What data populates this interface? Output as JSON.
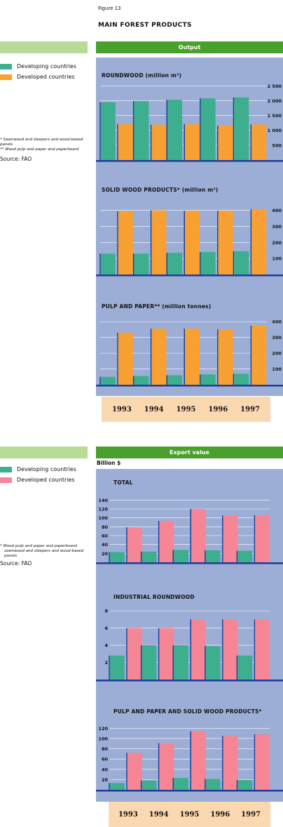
{
  "figure_label": "Figure 13",
  "main_title": "MAIN FOREST PRODUCTS",
  "colors": {
    "developing": "#3dae8e",
    "developed_output": "#f8a132",
    "developed_export": "#f68596",
    "panel_bg": "#9caed5",
    "axis_blue": "#1f3c99",
    "header_green": "#4aa02c",
    "light_green": "#b7dc95",
    "years_bg": "#fbd9b0"
  },
  "output": {
    "header": "Output",
    "legend": [
      "Developing countries",
      "Developed countries"
    ],
    "notes": [
      "*   Sawnwood and sleepers and wood-based panels",
      "**  Wood pulp and paper and paperboard"
    ],
    "source": "Source: FAO"
  },
  "export": {
    "header": "Export value",
    "unit_label": "Billion $",
    "legend": [
      "Developing countries",
      "Developed countries"
    ],
    "notes": [
      "*   Wood pulp and paper and paperboard,",
      "sawnwood and sleepers and wood-based panels"
    ],
    "source": "Source: FAO"
  },
  "years": [
    "1993",
    "1994",
    "1995",
    "1996",
    "1997"
  ],
  "chart_data": [
    {
      "type": "bar",
      "title": "ROUNDWOOD (million m³)",
      "categories": [
        "1993",
        "1994",
        "1995",
        "1996",
        "1997"
      ],
      "series": [
        {
          "name": "Developing countries",
          "values": [
            1950,
            1990,
            2030,
            2080,
            2110
          ]
        },
        {
          "name": "Developed countries",
          "values": [
            1210,
            1190,
            1210,
            1160,
            1200
          ]
        }
      ],
      "ylim": [
        0,
        2650
      ],
      "yticks": [
        500,
        1000,
        1500,
        2000,
        2500
      ],
      "ytick_labels": [
        "500",
        "1 000",
        "1 500",
        "2 000",
        "2 500"
      ]
    },
    {
      "type": "bar",
      "title": "SOLID WOOD PRODUCTS* (million m³)",
      "categories": [
        "1993",
        "1994",
        "1995",
        "1996",
        "1997"
      ],
      "series": [
        {
          "name": "Developing countries",
          "values": [
            130,
            130,
            135,
            140,
            145
          ]
        },
        {
          "name": "Developed countries",
          "values": [
            395,
            400,
            398,
            398,
            408
          ]
        }
      ],
      "ylim": [
        0,
        460
      ],
      "yticks": [
        100,
        200,
        300,
        400
      ],
      "ytick_labels": [
        "100",
        "200",
        "300",
        "400"
      ]
    },
    {
      "type": "bar",
      "title": "PULP AND PAPER** (million tonnes)",
      "categories": [
        "1993",
        "1994",
        "1995",
        "1996",
        "1997"
      ],
      "series": [
        {
          "name": "Developing countries",
          "values": [
            50,
            55,
            60,
            65,
            70
          ]
        },
        {
          "name": "Developed countries",
          "values": [
            330,
            355,
            356,
            352,
            375
          ]
        }
      ],
      "ylim": [
        0,
        410
      ],
      "yticks": [
        100,
        200,
        300,
        400
      ],
      "ytick_labels": [
        "100",
        "200",
        "300",
        "400"
      ]
    },
    {
      "type": "bar",
      "title": "TOTAL",
      "categories": [
        "1993",
        "1994",
        "1995",
        "1996",
        "1997"
      ],
      "series": [
        {
          "name": "Developing countries",
          "values": [
            23,
            24,
            28,
            27,
            26
          ]
        },
        {
          "name": "Developed countries",
          "values": [
            79,
            93,
            120,
            105,
            106
          ]
        }
      ],
      "ylim": [
        0,
        150
      ],
      "yticks": [
        20,
        40,
        60,
        80,
        100,
        120,
        140
      ],
      "ytick_labels": [
        "20",
        "40",
        "60",
        "80",
        "100",
        "120",
        "140"
      ]
    },
    {
      "type": "bar",
      "title": "INDUSTRIAL ROUNDWOOD",
      "categories": [
        "1993",
        "1994",
        "1995",
        "1996",
        "1997"
      ],
      "series": [
        {
          "name": "Developing countries",
          "values": [
            2.8,
            4.0,
            4.0,
            3.9,
            2.8
          ]
        },
        {
          "name": "Developed countries",
          "values": [
            6.0,
            6.0,
            7.0,
            7.0,
            7.0
          ]
        }
      ],
      "ylim": [
        0,
        8.5
      ],
      "yticks": [
        2,
        4,
        6,
        8
      ],
      "ytick_labels": [
        "2",
        "4",
        "6",
        "8"
      ]
    },
    {
      "type": "bar",
      "title": "PULP AND PAPER AND SOLID WOOD PRODUCTS*",
      "categories": [
        "1993",
        "1994",
        "1995",
        "1996",
        "1997"
      ],
      "series": [
        {
          "name": "Developing countries",
          "values": [
            13,
            18,
            23,
            21,
            19
          ]
        },
        {
          "name": "Developed countries",
          "values": [
            72,
            91,
            114,
            105,
            108
          ]
        }
      ],
      "ylim": [
        0,
        130
      ],
      "yticks": [
        20,
        40,
        60,
        80,
        100,
        120
      ],
      "ytick_labels": [
        "20",
        "40",
        "60",
        "80",
        "100",
        "120"
      ]
    }
  ]
}
